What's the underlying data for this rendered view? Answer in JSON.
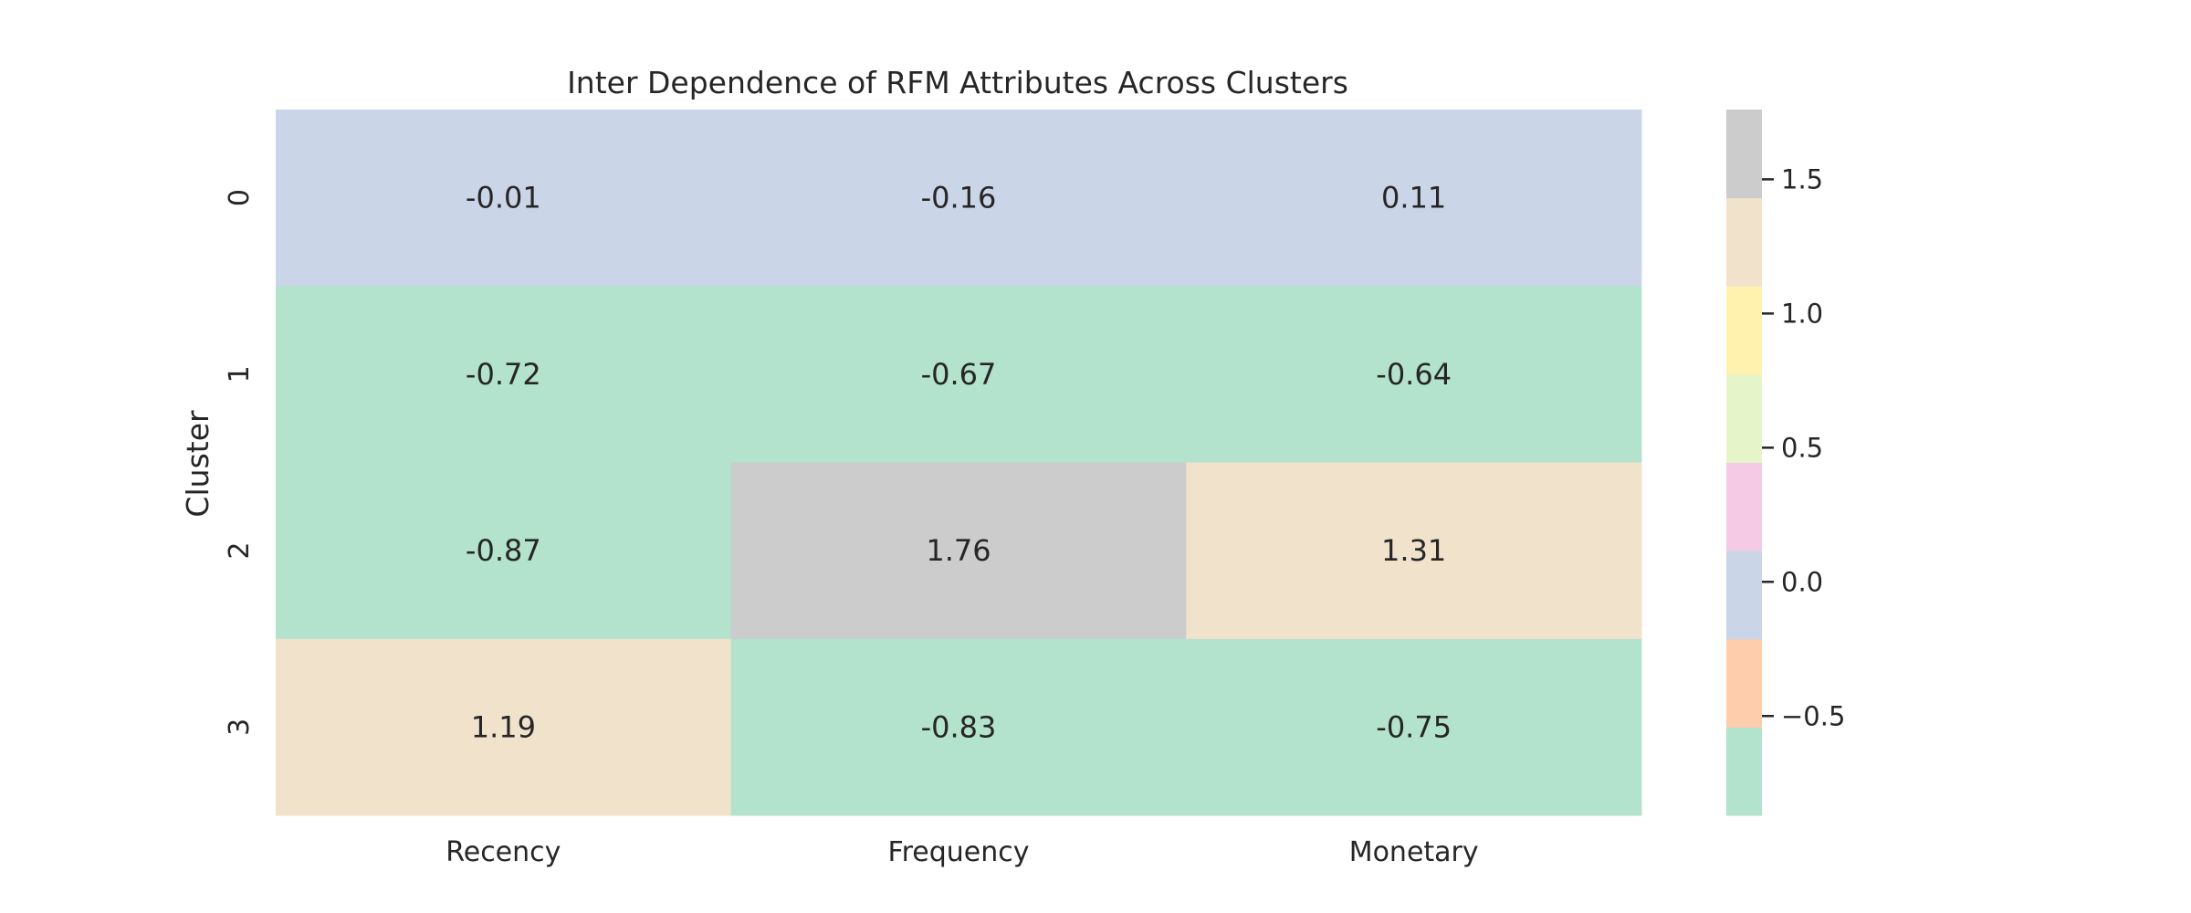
{
  "chart_data": {
    "type": "heatmap",
    "title": "Inter Dependence of RFM Attributes Across Clusters",
    "xlabel": "",
    "ylabel": "Cluster",
    "x_categories": [
      "Recency",
      "Frequency",
      "Monetary"
    ],
    "y_categories": [
      "0",
      "1",
      "2",
      "3"
    ],
    "values": [
      [
        -0.01,
        -0.16,
        0.11
      ],
      [
        -0.72,
        -0.67,
        -0.64
      ],
      [
        -0.87,
        1.76,
        1.31
      ],
      [
        1.19,
        -0.83,
        -0.75
      ]
    ],
    "value_labels": [
      [
        "-0.01",
        "-0.16",
        "0.11"
      ],
      [
        "-0.72",
        "-0.67",
        "-0.64"
      ],
      [
        "-0.87",
        "1.76",
        "1.31"
      ],
      [
        "1.19",
        "-0.83",
        "-0.75"
      ]
    ],
    "colormap": "Pastel2",
    "colors": [
      "#b3e2cd",
      "#fdcdac",
      "#cbd5e8",
      "#f4cae4",
      "#e6f5c9",
      "#fff2ae",
      "#f1e2cc",
      "#cccccc"
    ],
    "colorbar": {
      "range": [
        -0.87,
        1.76
      ],
      "ticks": [
        -0.5,
        0.0,
        0.5,
        1.0,
        1.5
      ],
      "tick_labels": [
        "−0.5",
        "0.0",
        "0.5",
        "1.0",
        "1.5"
      ]
    },
    "grid": false,
    "legend": "colorbar-right"
  }
}
